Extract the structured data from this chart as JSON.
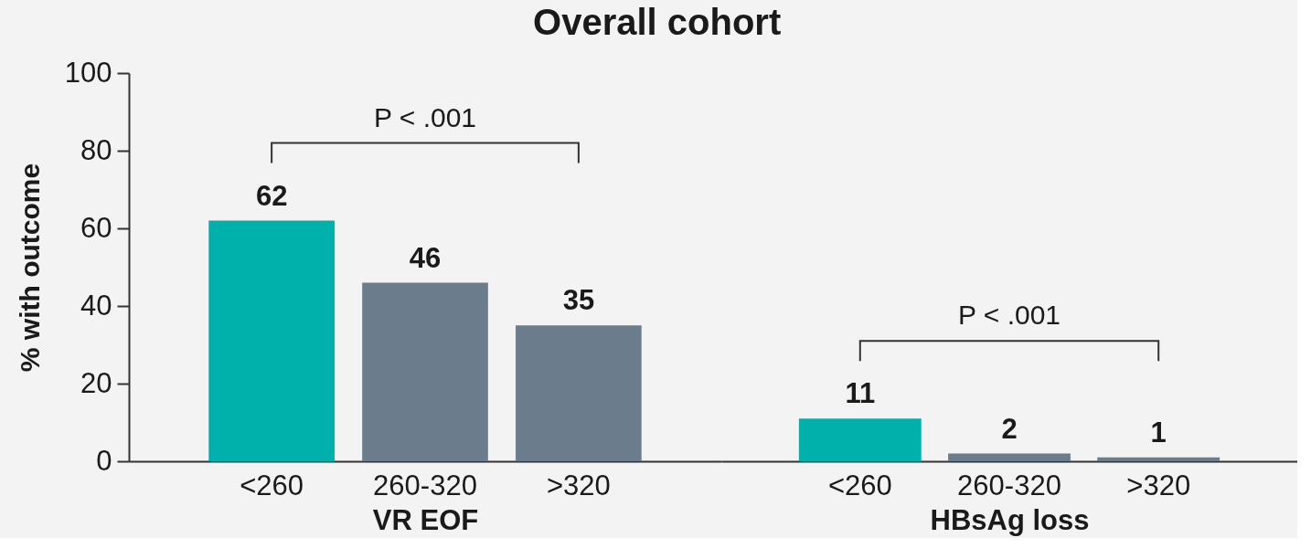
{
  "chart_data": [
    {
      "type": "bar",
      "title": "Overall cohort",
      "ylabel": "% with outcome",
      "xlabel": "VR EOF",
      "categories": [
        "<260",
        "260-320",
        ">320"
      ],
      "values": [
        62,
        46,
        35
      ],
      "colors": [
        "#00b0aa",
        "#6b7c8d",
        "#6b7c8d"
      ],
      "ylim": [
        0,
        100
      ],
      "yticks": [
        0,
        20,
        40,
        60,
        80,
        100
      ],
      "data_labels": true,
      "annotations": [
        "P < .001"
      ]
    },
    {
      "type": "bar",
      "xlabel": "HBsAg loss",
      "categories": [
        "<260",
        "260-320",
        ">320"
      ],
      "values": [
        11,
        2,
        1
      ],
      "colors": [
        "#00b0aa",
        "#6b7c8d",
        "#6b7c8d"
      ],
      "ylim": [
        0,
        100
      ],
      "yticks": [
        0,
        20,
        40,
        60,
        80,
        100
      ],
      "tick_labels": "x",
      "data_labels": true,
      "annotations": [
        "P < .001"
      ]
    }
  ]
}
